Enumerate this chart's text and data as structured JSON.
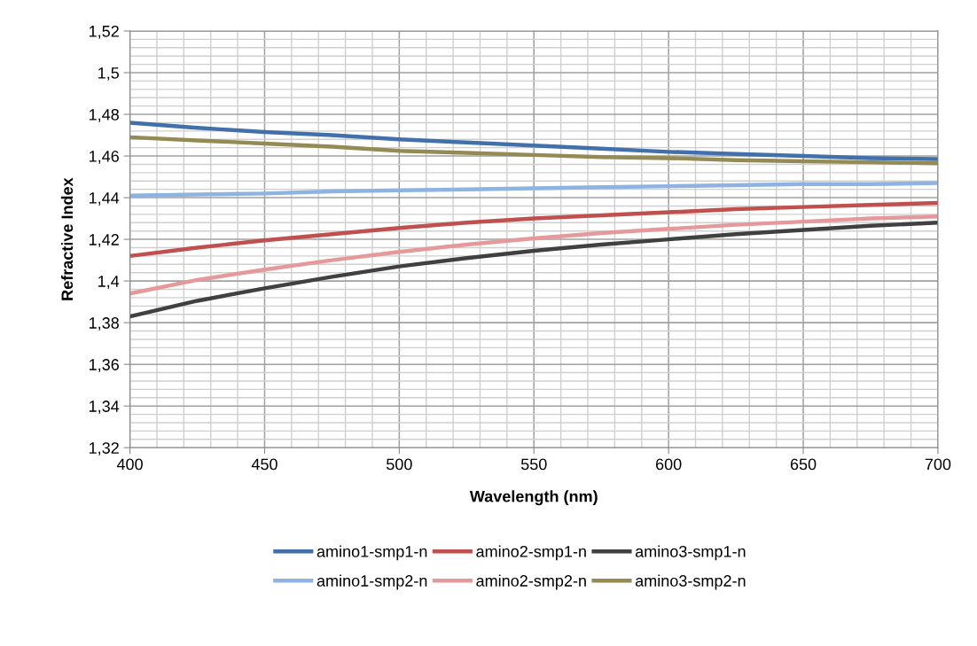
{
  "chart_data": {
    "type": "line",
    "xlabel": "Wavelength (nm)",
    "ylabel": "Refractive Index",
    "x": [
      400,
      425,
      450,
      475,
      500,
      525,
      550,
      575,
      600,
      625,
      650,
      675,
      700
    ],
    "series": [
      {
        "name": "amino1-smp1-n",
        "color": "#4170ab",
        "values": [
          1.476,
          1.4735,
          1.4715,
          1.47,
          1.468,
          1.4665,
          1.465,
          1.4635,
          1.462,
          1.461,
          1.46,
          1.459,
          1.4585
        ]
      },
      {
        "name": "amino1-smp2-n",
        "color": "#8db3e2",
        "values": [
          1.441,
          1.4415,
          1.442,
          1.443,
          1.4435,
          1.444,
          1.4445,
          1.445,
          1.4455,
          1.446,
          1.4465,
          1.4465,
          1.447
        ]
      },
      {
        "name": "amino2-smp1-n",
        "color": "#c0504d",
        "values": [
          1.412,
          1.416,
          1.4195,
          1.4225,
          1.4255,
          1.428,
          1.43,
          1.4315,
          1.433,
          1.4345,
          1.4355,
          1.4365,
          1.4375
        ]
      },
      {
        "name": "amino2-smp2-n",
        "color": "#e6999a",
        "values": [
          1.394,
          1.4005,
          1.4055,
          1.41,
          1.414,
          1.4175,
          1.4205,
          1.423,
          1.425,
          1.427,
          1.4285,
          1.43,
          1.431
        ]
      },
      {
        "name": "amino3-smp1-n",
        "color": "#404040",
        "values": [
          1.383,
          1.3905,
          1.3965,
          1.402,
          1.407,
          1.411,
          1.4145,
          1.4175,
          1.42,
          1.4225,
          1.4245,
          1.4265,
          1.428
        ]
      },
      {
        "name": "amino3-smp2-n",
        "color": "#948a54",
        "values": [
          1.469,
          1.4675,
          1.466,
          1.4645,
          1.4625,
          1.4615,
          1.4605,
          1.4595,
          1.459,
          1.458,
          1.4575,
          1.457,
          1.4565
        ]
      }
    ],
    "xlim": [
      400,
      700
    ],
    "xticks": [
      400,
      450,
      500,
      550,
      600,
      650,
      700
    ],
    "ylim": [
      1.32,
      1.52
    ],
    "yticks": [
      {
        "value": 1.32,
        "label": "1,32"
      },
      {
        "value": 1.34,
        "label": "1,34"
      },
      {
        "value": 1.36,
        "label": "1,36"
      },
      {
        "value": 1.38,
        "label": "1,38"
      },
      {
        "value": 1.4,
        "label": "1,4"
      },
      {
        "value": 1.42,
        "label": "1,42"
      },
      {
        "value": 1.44,
        "label": "1,44"
      },
      {
        "value": 1.46,
        "label": "1,46"
      },
      {
        "value": 1.48,
        "label": "1,48"
      },
      {
        "value": 1.5,
        "label": "1,5"
      },
      {
        "value": 1.52,
        "label": "1,52"
      }
    ],
    "grid": true,
    "legend": "bottom",
    "marker": "none",
    "line_style": "solid"
  }
}
